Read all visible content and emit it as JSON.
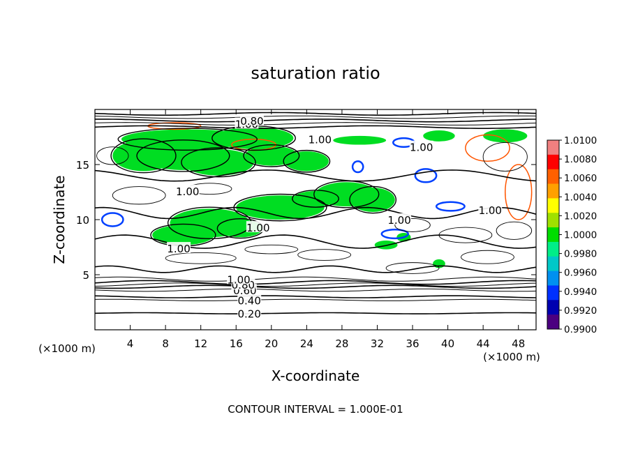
{
  "chart_data": {
    "type": "heatmap",
    "title": "saturation ratio",
    "xlabel": "X-coordinate",
    "ylabel": "Z-coordinate",
    "x_unit_label": "(×1000 m)",
    "z_unit_label": "(×1000 m)",
    "footer": "CONTOUR INTERVAL = 1.000E-01",
    "xlim": [
      0,
      50
    ],
    "ylim": [
      0,
      20
    ],
    "x_ticks": [
      4,
      8,
      12,
      16,
      20,
      24,
      28,
      32,
      36,
      40,
      44,
      48
    ],
    "y_ticks": [
      5,
      10,
      15
    ],
    "colorbar": {
      "range": [
        0.99,
        1.01
      ],
      "labels": [
        "1.0100",
        "1.0080",
        "1.0060",
        "1.0040",
        "1.0020",
        "1.0000",
        "0.9980",
        "0.9960",
        "0.9940",
        "0.9920",
        "0.9900"
      ],
      "colors": [
        "#f08080",
        "#ff0000",
        "#ff6000",
        "#ffa000",
        "#ffff00",
        "#a0e000",
        "#00dd00",
        "#00ee88",
        "#00c8c8",
        "#0090f0",
        "#0030ff",
        "#0000b0",
        "#4b0080"
      ]
    },
    "contour_labels": [
      {
        "text": "0.20",
        "x": 17.5,
        "y": 1.5
      },
      {
        "text": "0.40",
        "x": 17.5,
        "y": 2.7
      },
      {
        "text": "0.60",
        "x": 17.0,
        "y": 3.6
      },
      {
        "text": "0.80",
        "x": 16.8,
        "y": 4.1
      },
      {
        "text": "1.00",
        "x": 16.3,
        "y": 4.6
      },
      {
        "text": "1.00",
        "x": 9.5,
        "y": 7.4
      },
      {
        "text": "1.00",
        "x": 18.5,
        "y": 9.3
      },
      {
        "text": "1.00",
        "x": 34.5,
        "y": 10.0
      },
      {
        "text": "1.00",
        "x": 44.8,
        "y": 10.9
      },
      {
        "text": "1.00",
        "x": 10.5,
        "y": 12.6
      },
      {
        "text": "1.00",
        "x": 25.5,
        "y": 17.3
      },
      {
        "text": "1.00",
        "x": 37.0,
        "y": 16.6
      },
      {
        "text": "1.00",
        "x": 17.2,
        "y": 18.7
      },
      {
        "text": "0.80",
        "x": 17.8,
        "y": 19.0
      }
    ]
  }
}
